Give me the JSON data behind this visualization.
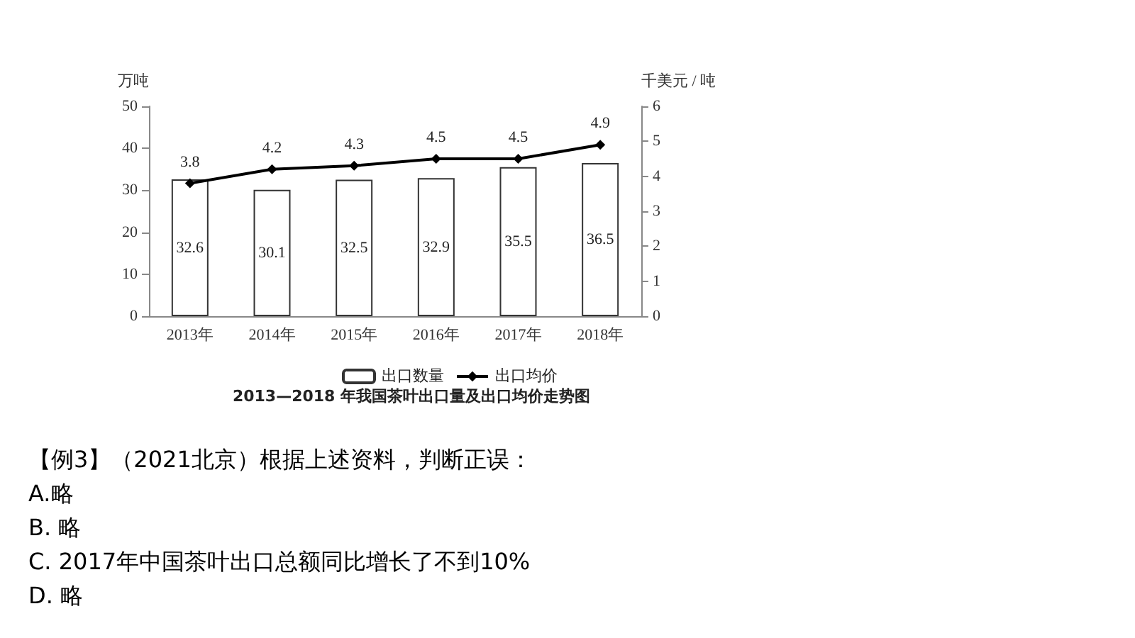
{
  "chart_data": {
    "type": "bar",
    "title": "2013—2018 年我国茶叶出口量及出口均价走势图",
    "ylabel": "万吨",
    "y2label": "千美元 / 吨",
    "categories": [
      "2013年",
      "2014年",
      "2015年",
      "2016年",
      "2017年",
      "2018年"
    ],
    "series": [
      {
        "name": "出口数量",
        "color": "#ffffff",
        "values": [
          32.6,
          30.1,
          32.5,
          32.9,
          35.5,
          36.5
        ]
      },
      {
        "name": "出口均价",
        "type": "line",
        "axis": "y2",
        "color": "#000000",
        "values": [
          3.8,
          4.2,
          4.3,
          4.5,
          4.5,
          4.9
        ]
      }
    ],
    "ylim": [
      0,
      50
    ],
    "yticks": [
      0,
      10,
      20,
      30,
      40,
      50
    ],
    "y2lim": [
      0,
      6
    ],
    "y2ticks": [
      0,
      1,
      2,
      3,
      4,
      5,
      6
    ],
    "data_labels": true,
    "legend": "bottom",
    "marker": "diamond",
    "grid": false,
    "annotations": [
      "【例3】（2021北京）根据上述资料，判断正误：",
      "A.略",
      "B. 略",
      "C. 2017年中国茶叶出口总额同比增长了不到10%",
      "D. 略"
    ]
  }
}
